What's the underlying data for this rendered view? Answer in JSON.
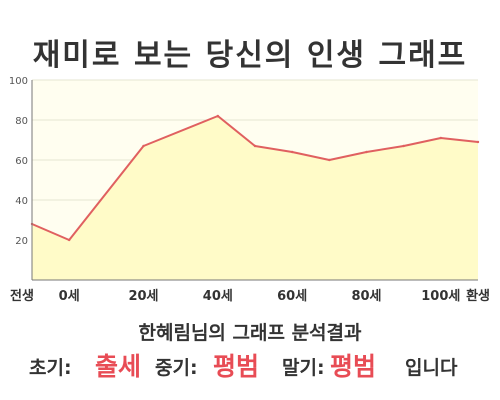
{
  "title": "재미로 보는 당신의 인생 그래프",
  "result": {
    "subtitle": "한혜림님의 그래프 분석결과",
    "early_label": "초기:",
    "early_value": "출세",
    "mid_label": "중기:",
    "mid_value": "평범",
    "late_label": "말기:",
    "late_value": "평범",
    "ending": "입니다"
  },
  "colors": {
    "line": "#e06060",
    "fill": "#fffbc8",
    "plot_bg": "#fffef0",
    "grid": "#e6e6d2",
    "accent": "#e84c55"
  },
  "chart_data": {
    "type": "area",
    "title": "재미로 보는 당신의 인생 그래프",
    "categories": [
      "전생",
      "0세",
      "20세",
      "40세",
      "60세",
      "80세",
      "100세",
      "환생"
    ],
    "x": [
      -10,
      0,
      20,
      40,
      50,
      60,
      70,
      80,
      90,
      100,
      110
    ],
    "y": [
      28,
      20,
      67,
      82,
      67,
      64,
      60,
      64,
      67,
      71,
      69
    ],
    "ytick_labels": [
      "20",
      "40",
      "60",
      "80",
      "100"
    ],
    "yticks": [
      20,
      40,
      60,
      80,
      100
    ],
    "ylim": [
      0,
      100
    ],
    "xlim": [
      -10,
      110
    ],
    "xlabel": "",
    "ylabel": "",
    "grid": true
  }
}
